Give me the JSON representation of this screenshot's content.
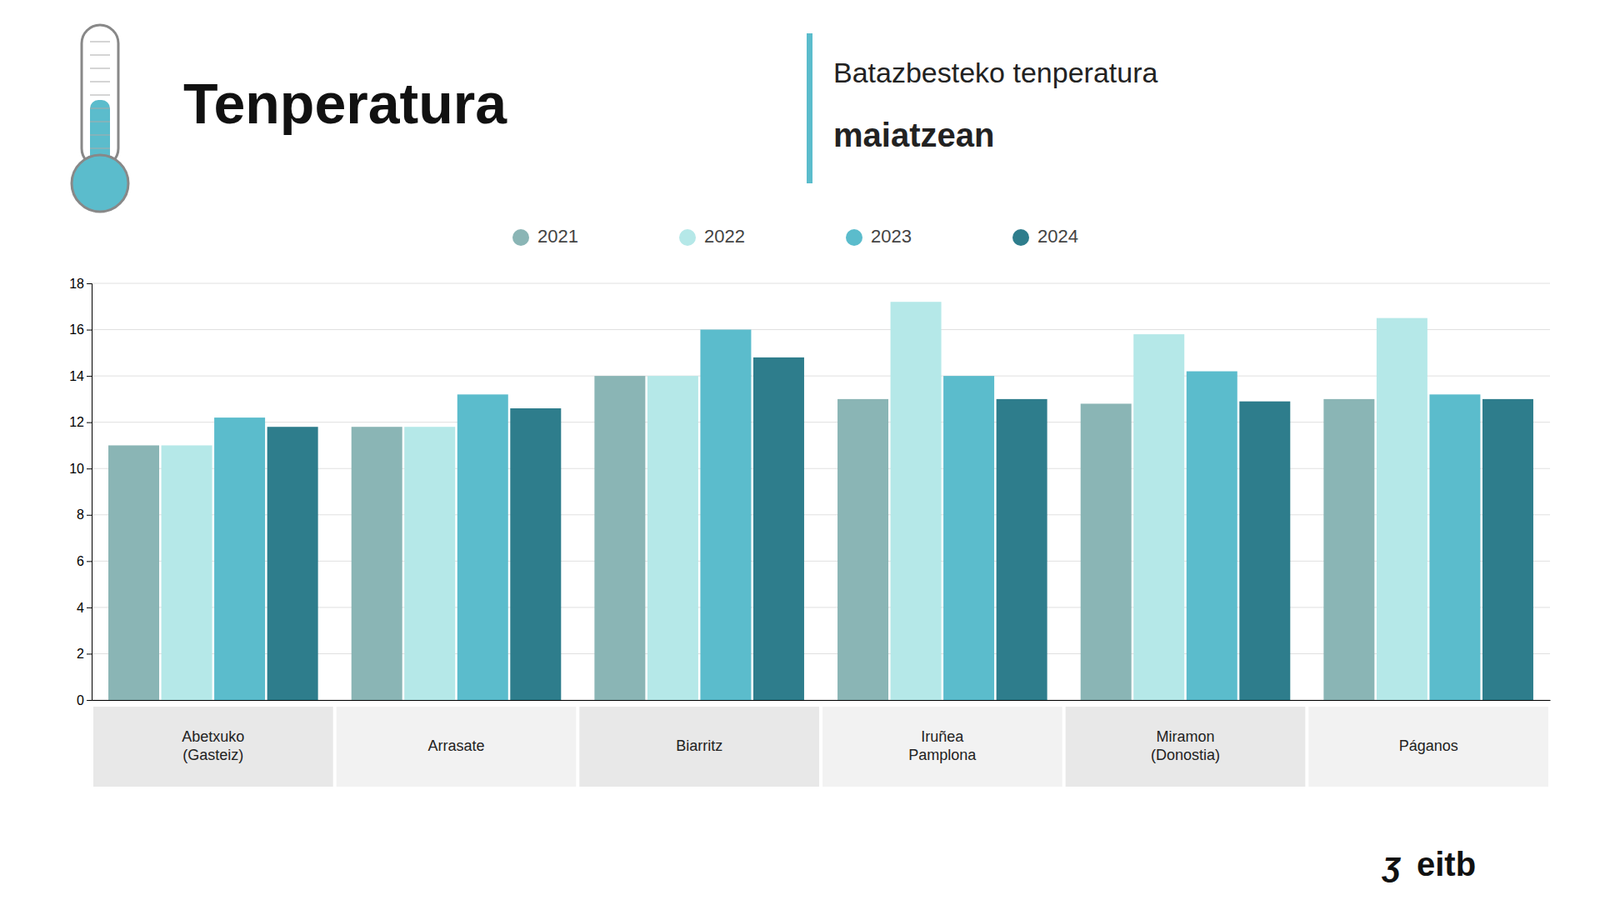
{
  "chart_data": {
    "type": "bar",
    "title": "Tenperatura",
    "subtitle": [
      "Batazbesteko tenperatura",
      "maiatzean"
    ],
    "annotations": [
      "ʒ",
      "eitb"
    ],
    "categories": [
      "Abetxuko\n(Gasteiz)",
      "Arrasate",
      "Biarritz",
      "Iruñea\nPamplona",
      "Miramon\n(Donostia)",
      "Páganos"
    ],
    "series": [
      {
        "name": "2021",
        "color": "#8ab5b5",
        "values": [
          11.0,
          11.8,
          14.0,
          13.0,
          12.8,
          13.0
        ]
      },
      {
        "name": "2022",
        "color": "#b5e8e8",
        "values": [
          11.0,
          11.8,
          14.0,
          17.2,
          15.8,
          16.5
        ]
      },
      {
        "name": "2023",
        "color": "#5bbccc",
        "values": [
          12.2,
          13.2,
          16.0,
          14.0,
          14.2,
          13.2
        ]
      },
      {
        "name": "2024",
        "color": "#2e7d8c",
        "values": [
          11.8,
          12.6,
          14.8,
          13.0,
          12.9,
          13.0
        ]
      }
    ],
    "ylim": [
      0,
      18
    ],
    "yticks": [
      0,
      2,
      4,
      6,
      8,
      10,
      12,
      14,
      16,
      18
    ],
    "grid": true,
    "legend": "top"
  }
}
